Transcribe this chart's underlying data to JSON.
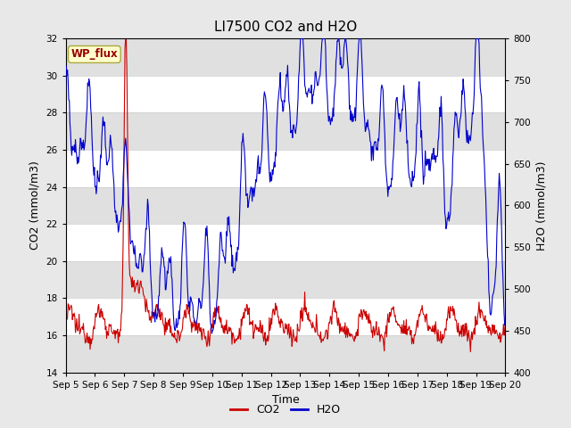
{
  "title": "LI7500 CO2 and H2O",
  "xlabel": "Time",
  "ylabel_left": "CO2 (mmol/m3)",
  "ylabel_right": "H2O (mmol/m3)",
  "ylim_left": [
    14,
    32
  ],
  "ylim_right": [
    400,
    800
  ],
  "yticks_left": [
    14,
    16,
    18,
    20,
    22,
    24,
    26,
    28,
    30,
    32
  ],
  "yticks_right": [
    400,
    450,
    500,
    550,
    600,
    650,
    700,
    750,
    800
  ],
  "xtick_labels": [
    "Sep 5",
    "Sep 6",
    "Sep 7",
    "Sep 8",
    "Sep 9",
    "Sep 10",
    "Sep 11",
    "Sep 12",
    "Sep 13",
    "Sep 14",
    "Sep 15",
    "Sep 16",
    "Sep 17",
    "Sep 18",
    "Sep 19",
    "Sep 20"
  ],
  "co2_color": "#cc0000",
  "h2o_color": "#0000cc",
  "fig_bg_color": "#e8e8e8",
  "plot_bg_white": "#ffffff",
  "plot_bg_gray": "#e0e0e0",
  "wp_flux_label": "WP_flux",
  "wp_flux_bg": "#ffffcc",
  "wp_flux_border": "#aaa840",
  "wp_flux_text_color": "#990000",
  "legend_co2_label": "CO2",
  "legend_h2o_label": "H2O",
  "title_fontsize": 11,
  "axis_label_fontsize": 9,
  "tick_fontsize": 7.5,
  "n_days": 15,
  "n_points": 720
}
